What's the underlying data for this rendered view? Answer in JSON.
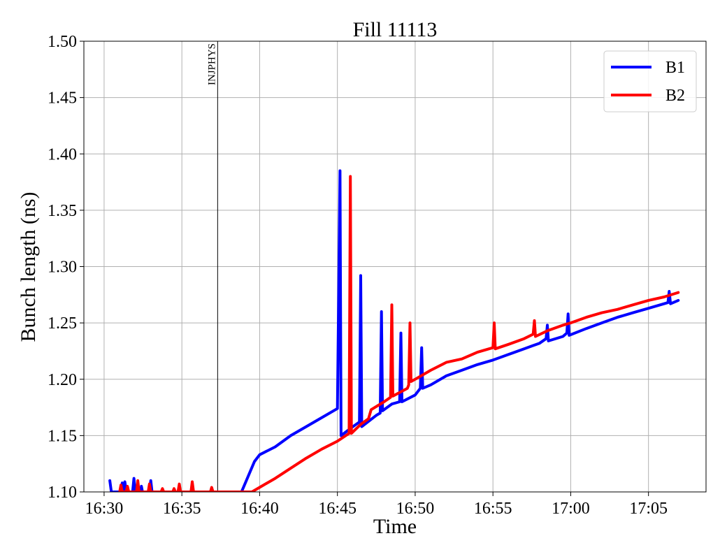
{
  "chart_data": {
    "type": "line",
    "title": "Fill 11113",
    "xlabel": "Time",
    "ylabel": "Bunch length (ns)",
    "ylim": [
      1.1,
      1.5
    ],
    "xlim": [
      "16:28:42",
      "17:08:42"
    ],
    "x_ticks": [
      "16:30",
      "16:35",
      "16:40",
      "16:45",
      "16:50",
      "16:55",
      "17:00",
      "17:05"
    ],
    "y_ticks": [
      "1.10",
      "1.15",
      "1.20",
      "1.25",
      "1.30",
      "1.35",
      "1.40",
      "1.45",
      "1.50"
    ],
    "grid": true,
    "legend": "top-right",
    "event_marker": {
      "label": "INJPHYS",
      "time": "16:37:18"
    },
    "series": [
      {
        "name": "B1",
        "color": "#0000ff",
        "points": [
          [
            "16:30:22",
            1.11
          ],
          [
            "16:30:28",
            1.1
          ],
          [
            "16:31:05",
            1.1
          ],
          [
            "16:31:10",
            1.108
          ],
          [
            "16:31:14",
            1.1
          ],
          [
            "16:31:20",
            1.109
          ],
          [
            "16:31:26",
            1.1
          ],
          [
            "16:31:50",
            1.1
          ],
          [
            "16:31:55",
            1.112
          ],
          [
            "16:32:00",
            1.1
          ],
          [
            "16:32:20",
            1.1
          ],
          [
            "16:32:24",
            1.105
          ],
          [
            "16:32:28",
            1.1
          ],
          [
            "16:32:55",
            1.1
          ],
          [
            "16:33:00",
            1.11
          ],
          [
            "16:33:05",
            1.1
          ],
          [
            "16:38:50",
            1.1
          ],
          [
            "16:39:40",
            1.127
          ],
          [
            "16:40:00",
            1.133
          ],
          [
            "16:41:00",
            1.14
          ],
          [
            "16:42:00",
            1.15
          ],
          [
            "16:43:00",
            1.158
          ],
          [
            "16:44:00",
            1.166
          ],
          [
            "16:45:00",
            1.174
          ],
          [
            "16:45:10",
            1.385
          ],
          [
            "16:45:14",
            1.15
          ],
          [
            "16:46:00",
            1.158
          ],
          [
            "16:46:25",
            1.162
          ],
          [
            "16:46:30",
            1.292
          ],
          [
            "16:46:34",
            1.158
          ],
          [
            "16:47:30",
            1.168
          ],
          [
            "16:47:45",
            1.17
          ],
          [
            "16:47:50",
            1.26
          ],
          [
            "16:47:54",
            1.172
          ],
          [
            "16:48:30",
            1.178
          ],
          [
            "16:49:00",
            1.18
          ],
          [
            "16:49:05",
            1.241
          ],
          [
            "16:49:09",
            1.18
          ],
          [
            "16:50:00",
            1.186
          ],
          [
            "16:50:20",
            1.192
          ],
          [
            "16:50:25",
            1.228
          ],
          [
            "16:50:29",
            1.192
          ],
          [
            "16:51:00",
            1.195
          ],
          [
            "16:52:00",
            1.203
          ],
          [
            "16:53:00",
            1.208
          ],
          [
            "16:54:00",
            1.213
          ],
          [
            "16:55:00",
            1.217
          ],
          [
            "16:56:00",
            1.222
          ],
          [
            "16:57:00",
            1.227
          ],
          [
            "16:58:00",
            1.232
          ],
          [
            "16:58:25",
            1.236
          ],
          [
            "16:58:30",
            1.248
          ],
          [
            "16:58:34",
            1.234
          ],
          [
            "16:59:30",
            1.238
          ],
          [
            "16:59:45",
            1.241
          ],
          [
            "16:59:50",
            1.258
          ],
          [
            "16:59:54",
            1.239
          ],
          [
            "17:01:00",
            1.245
          ],
          [
            "17:02:00",
            1.25
          ],
          [
            "17:03:00",
            1.255
          ],
          [
            "17:04:00",
            1.259
          ],
          [
            "17:05:00",
            1.263
          ],
          [
            "17:06:15",
            1.268
          ],
          [
            "17:06:20",
            1.278
          ],
          [
            "17:06:25",
            1.267
          ],
          [
            "17:06:55",
            1.27
          ]
        ]
      },
      {
        "name": "B2",
        "color": "#ff0000",
        "points": [
          [
            "16:31:00",
            1.1
          ],
          [
            "16:31:05",
            1.106
          ],
          [
            "16:31:10",
            1.1
          ],
          [
            "16:31:25",
            1.1
          ],
          [
            "16:31:30",
            1.105
          ],
          [
            "16:31:35",
            1.1
          ],
          [
            "16:32:05",
            1.1
          ],
          [
            "16:32:10",
            1.11
          ],
          [
            "16:32:15",
            1.1
          ],
          [
            "16:32:50",
            1.1
          ],
          [
            "16:32:55",
            1.107
          ],
          [
            "16:33:00",
            1.1
          ],
          [
            "16:33:40",
            1.1
          ],
          [
            "16:33:45",
            1.103
          ],
          [
            "16:33:50",
            1.1
          ],
          [
            "16:34:25",
            1.1
          ],
          [
            "16:34:30",
            1.103
          ],
          [
            "16:34:35",
            1.1
          ],
          [
            "16:34:45",
            1.1
          ],
          [
            "16:34:50",
            1.107
          ],
          [
            "16:34:55",
            1.1
          ],
          [
            "16:35:35",
            1.1
          ],
          [
            "16:35:40",
            1.109
          ],
          [
            "16:35:45",
            1.1
          ],
          [
            "16:36:50",
            1.1
          ],
          [
            "16:36:55",
            1.104
          ],
          [
            "16:37:00",
            1.1
          ],
          [
            "16:39:30",
            1.1
          ],
          [
            "16:40:00",
            1.104
          ],
          [
            "16:41:00",
            1.112
          ],
          [
            "16:42:00",
            1.121
          ],
          [
            "16:43:00",
            1.13
          ],
          [
            "16:44:00",
            1.138
          ],
          [
            "16:45:00",
            1.145
          ],
          [
            "16:45:45",
            1.152
          ],
          [
            "16:45:50",
            1.38
          ],
          [
            "16:45:54",
            1.152
          ],
          [
            "16:46:30",
            1.16
          ],
          [
            "16:47:00",
            1.165
          ],
          [
            "16:47:10",
            1.173
          ],
          [
            "16:48:00",
            1.18
          ],
          [
            "16:48:25",
            1.184
          ],
          [
            "16:48:30",
            1.266
          ],
          [
            "16:48:34",
            1.185
          ],
          [
            "16:49:30",
            1.192
          ],
          [
            "16:49:35",
            1.195
          ],
          [
            "16:49:40",
            1.25
          ],
          [
            "16:49:44",
            1.198
          ],
          [
            "16:50:00",
            1.2
          ],
          [
            "16:51:00",
            1.208
          ],
          [
            "16:52:00",
            1.215
          ],
          [
            "16:53:00",
            1.218
          ],
          [
            "16:54:00",
            1.224
          ],
          [
            "16:55:00",
            1.228
          ],
          [
            "16:55:05",
            1.25
          ],
          [
            "16:55:09",
            1.227
          ],
          [
            "16:56:00",
            1.231
          ],
          [
            "16:57:00",
            1.236
          ],
          [
            "16:57:35",
            1.24
          ],
          [
            "16:57:40",
            1.252
          ],
          [
            "16:57:44",
            1.238
          ],
          [
            "16:58:30",
            1.243
          ],
          [
            "16:59:30",
            1.248
          ],
          [
            "17:00:00",
            1.25
          ],
          [
            "17:01:00",
            1.255
          ],
          [
            "17:02:00",
            1.259
          ],
          [
            "17:03:00",
            1.262
          ],
          [
            "17:04:00",
            1.266
          ],
          [
            "17:05:00",
            1.27
          ],
          [
            "17:06:00",
            1.273
          ],
          [
            "17:06:55",
            1.277
          ]
        ]
      }
    ]
  }
}
